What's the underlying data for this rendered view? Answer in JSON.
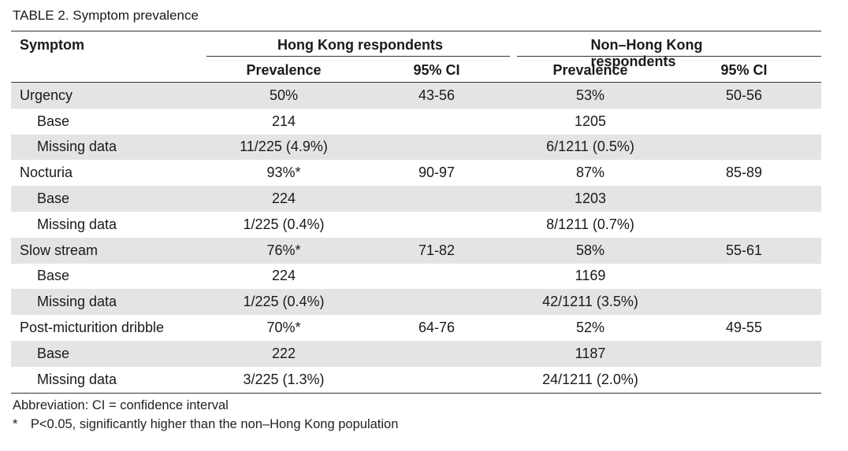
{
  "title": {
    "label": "TABLE 2.",
    "text": "Symptom prevalence"
  },
  "header": {
    "symptom": "Symptom",
    "group_hk": "Hong Kong respondents",
    "group_non_hk": "Non–Hong Kong respondents",
    "prevalence": "Prevalence",
    "ci": "95% CI"
  },
  "rows": [
    {
      "label": "Urgency",
      "hk_prev": "50%",
      "hk_ci": "43-56",
      "nhk_prev": "53%",
      "nhk_ci": "50-56"
    },
    {
      "label": "Base",
      "hk_prev": "214",
      "hk_ci": "",
      "nhk_prev": "1205",
      "nhk_ci": ""
    },
    {
      "label": "Missing data",
      "hk_prev": "11/225 (4.9%)",
      "hk_ci": "",
      "nhk_prev": "6/1211 (0.5%)",
      "nhk_ci": ""
    },
    {
      "label": "Nocturia",
      "hk_prev": "93%*",
      "hk_ci": "90-97",
      "nhk_prev": "87%",
      "nhk_ci": "85-89"
    },
    {
      "label": "Base",
      "hk_prev": "224",
      "hk_ci": "",
      "nhk_prev": "1203",
      "nhk_ci": ""
    },
    {
      "label": "Missing data",
      "hk_prev": "1/225 (0.4%)",
      "hk_ci": "",
      "nhk_prev": "8/1211 (0.7%)",
      "nhk_ci": ""
    },
    {
      "label": "Slow stream",
      "hk_prev": "76%*",
      "hk_ci": "71-82",
      "nhk_prev": "58%",
      "nhk_ci": "55-61"
    },
    {
      "label": "Base",
      "hk_prev": "224",
      "hk_ci": "",
      "nhk_prev": "1169",
      "nhk_ci": ""
    },
    {
      "label": "Missing data",
      "hk_prev": "1/225 (0.4%)",
      "hk_ci": "",
      "nhk_prev": "42/1211 (3.5%)",
      "nhk_ci": ""
    },
    {
      "label": "Post-micturition dribble",
      "hk_prev": "70%*",
      "hk_ci": "64-76",
      "nhk_prev": "52%",
      "nhk_ci": "49-55"
    },
    {
      "label": "Base",
      "hk_prev": "222",
      "hk_ci": "",
      "nhk_prev": "1187",
      "nhk_ci": ""
    },
    {
      "label": "Missing data",
      "hk_prev": "3/225 (1.3%)",
      "hk_ci": "",
      "nhk_prev": "24/1211 (2.0%)",
      "nhk_ci": ""
    }
  ],
  "footnotes": {
    "abbreviation": "Abbreviation: CI = confidence interval",
    "asterisk": "* P<0.05, significantly higher than the non–Hong Kong population"
  },
  "colors": {
    "shade": "#e3e4e6",
    "rule": "#333333"
  }
}
